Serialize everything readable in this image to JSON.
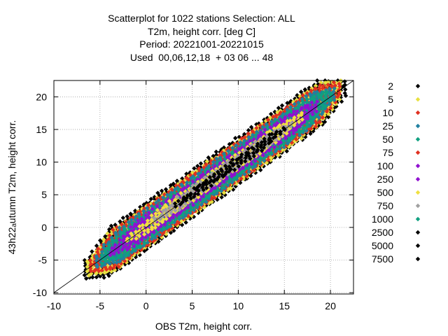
{
  "chart_data": {
    "type": "scatter",
    "title_lines": [
      "Scatterplot for 1022 stations Selection: ALL",
      "T2m, height corr. [deg C]",
      "Period: 20221001-20221015",
      "Used  00,06,12,18  + 03 06 ... 48"
    ],
    "xlabel": "OBS T2m, height corr.",
    "ylabel": "43h22ₐutumn T2m, height corr.",
    "xlim": [
      -10,
      22.5
    ],
    "ylim": [
      -10.2,
      22.5
    ],
    "xticks": [
      "-10",
      "-5",
      "0",
      "5",
      "10",
      "15",
      "20"
    ],
    "yticks": [
      "-10",
      "-5",
      "0",
      "5",
      "10",
      "15",
      "20"
    ],
    "grid": true,
    "legend_position": "right",
    "diagonal_reference": [
      [
        -10,
        -10
      ],
      [
        22.5,
        22.5
      ]
    ],
    "legend": [
      {
        "label": "2",
        "color": "#000000"
      },
      {
        "label": "5",
        "color": "#e8e040"
      },
      {
        "label": "10",
        "color": "#e03020"
      },
      {
        "label": "25",
        "color": "#2080a0"
      },
      {
        "label": "50",
        "color": "#10a080"
      },
      {
        "label": "75",
        "color": "#e03020"
      },
      {
        "label": "100",
        "color": "#9010d0"
      },
      {
        "label": "250",
        "color": "#9010d0"
      },
      {
        "label": "500",
        "color": "#f0e040"
      },
      {
        "label": "750",
        "color": "#a0a0a0"
      },
      {
        "label": "1000",
        "color": "#10a080"
      },
      {
        "label": "2500",
        "color": "#000000"
      },
      {
        "label": "5000",
        "color": "#000000"
      },
      {
        "label": "7500",
        "color": "#000000"
      }
    ],
    "density_bands": [
      {
        "min_count": "2",
        "color": "#000000",
        "halfwidth": 3.6,
        "x_range": [
          -6.6,
          21.8
        ]
      },
      {
        "min_count": "5",
        "color": "#e8e040",
        "halfwidth": 3.3,
        "x_range": [
          -6.3,
          21.4
        ]
      },
      {
        "min_count": "10",
        "color": "#e03020",
        "halfwidth": 3.0,
        "x_range": [
          -6.0,
          21.0
        ]
      },
      {
        "min_count": "25",
        "color": "#2080a0",
        "halfwidth": 2.6,
        "x_range": [
          -5.3,
          20.5
        ]
      },
      {
        "min_count": "50",
        "color": "#10a080",
        "halfwidth": 2.3,
        "x_range": [
          -4.8,
          20.0
        ]
      },
      {
        "min_count": "100",
        "color": "#9010d0",
        "halfwidth": 1.7,
        "x_range": [
          -3.8,
          18.8
        ]
      },
      {
        "min_count": "500",
        "color": "#f0e040",
        "halfwidth": 1.05,
        "x_range": [
          -2.0,
          17.2
        ]
      },
      {
        "min_count": "750",
        "color": "#a0a0a0",
        "halfwidth": 0.85,
        "x_range": [
          1.0,
          15.8
        ]
      },
      {
        "min_count": "2500",
        "color": "#000000",
        "halfwidth": 0.75,
        "x_range": [
          3.2,
          15.2
        ]
      }
    ]
  }
}
